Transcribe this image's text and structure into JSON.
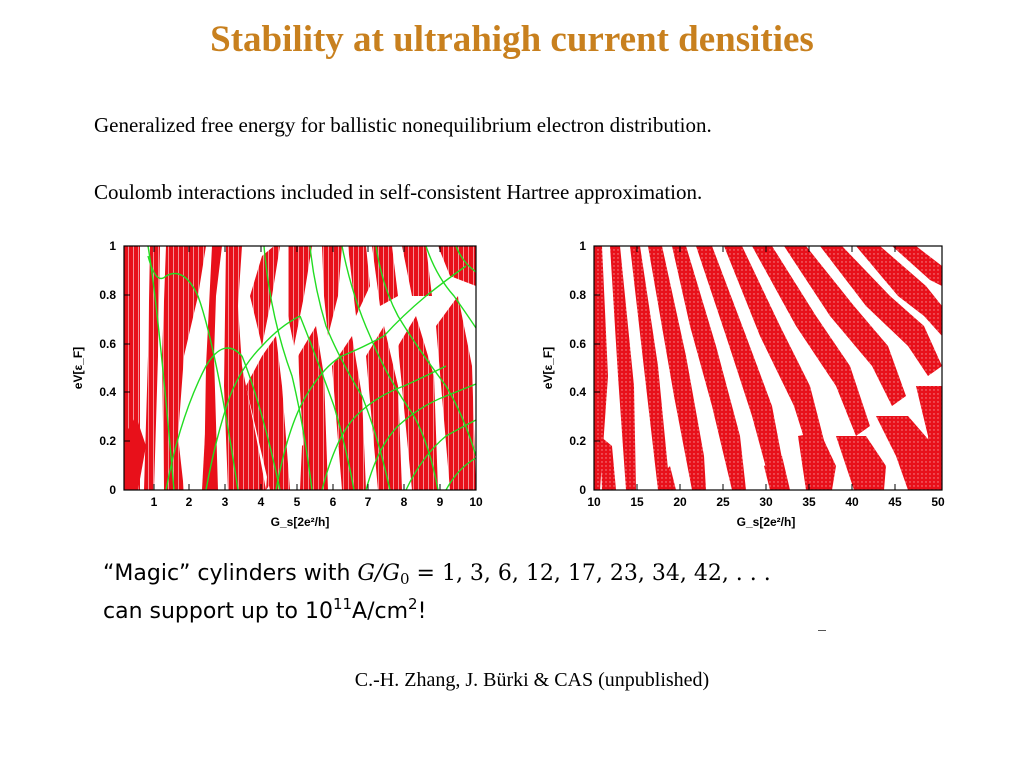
{
  "title": "Stability at ultrahigh current densities",
  "bullets": [
    "Generalized free energy for ballistic nonequilibrium electron distribution.",
    "Coulomb interactions included in self-consistent Hartree approximation."
  ],
  "colors": {
    "title": "#c8801e",
    "stable_region": "#e8101a",
    "curves": "#22dd22"
  },
  "chart_data": [
    {
      "type": "heatmap",
      "description_regions": "red = stable regions",
      "xlabel": "G_s[2e²/h]",
      "ylabel": "eV[ε_F]",
      "xlim": [
        0.3,
        10.1
      ],
      "ylim": [
        0,
        1
      ],
      "xticks": [
        "1",
        "2",
        "3",
        "4",
        "5",
        "6",
        "7",
        "8",
        "9",
        "10"
      ],
      "yticks": [
        "0",
        "0.2",
        "0.4",
        "0.6",
        "0.8",
        "1"
      ],
      "overlay": "green curves"
    },
    {
      "type": "heatmap",
      "xlabel": "G_s[2e²/h]",
      "ylabel": "eV[ε_F]",
      "xlim": [
        9.5,
        50
      ],
      "ylim": [
        0,
        1
      ],
      "xticks": [
        "10",
        "15",
        "20",
        "25",
        "30",
        "35",
        "40",
        "45",
        "50"
      ],
      "yticks": [
        "0",
        "0.2",
        "0.4",
        "0.6",
        "0.8",
        "1"
      ]
    }
  ],
  "magic": {
    "line1_prefix": "“Magic” cylinders with",
    "var_G": "G",
    "slash": "/",
    "var_G0": "G",
    "sub0": "0",
    "equals": "=",
    "values": "1, 3, 6, 12, 17, 23, 34, 42, . . .",
    "line2_prefix": "can support up to 10",
    "exp": "11",
    "unit": "A/cm",
    "unit_exp": "2",
    "bang": "!"
  },
  "credit": "C.-H. Zhang, J. Bürki & CAS (unpublished)"
}
